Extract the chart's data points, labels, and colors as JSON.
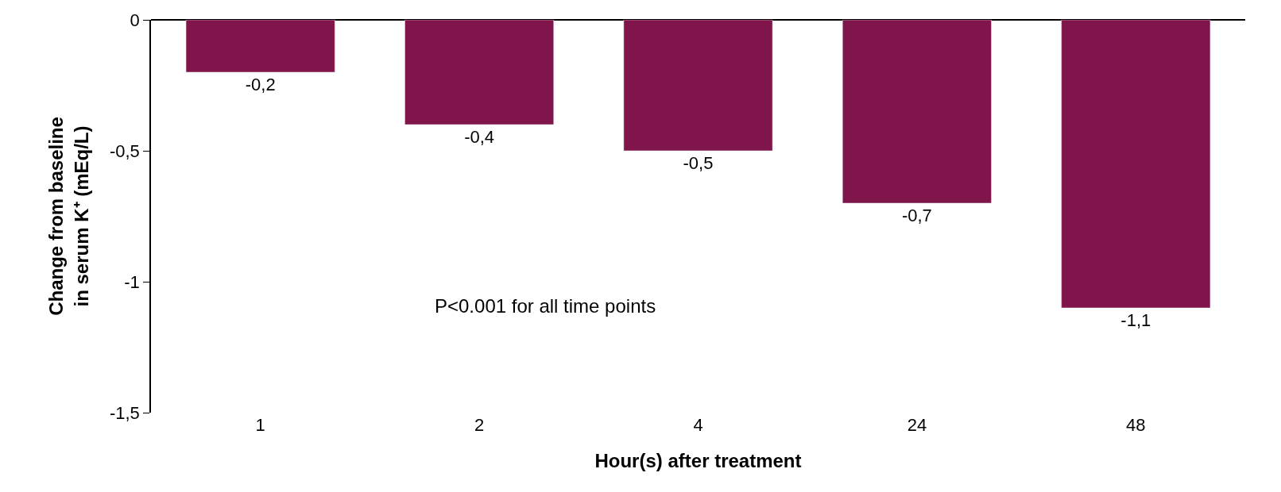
{
  "chart_data": {
    "type": "bar",
    "xlabel": "Hour(s) after treatment",
    "ylabel": "Change from baseline\nin serum K⁺ (mEq/L)",
    "categories": [
      "1",
      "2",
      "4",
      "24",
      "48"
    ],
    "values": [
      -0.2,
      -0.4,
      -0.5,
      -0.7,
      -1.1
    ],
    "value_labels": [
      "-0,2",
      "-0,4",
      "-0,5",
      "-0,7",
      "-1,1"
    ],
    "color": "#7f154a",
    "ylim": [
      -1.5,
      0
    ],
    "yticks": [
      {
        "value": -1.5,
        "label": "-1,5"
      },
      {
        "value": -1,
        "label": "-1"
      },
      {
        "value": -0.5,
        "label": "-0,5"
      },
      {
        "value": 0,
        "label": "0"
      }
    ],
    "annotations": [
      "P<0.001 for all time points"
    ]
  }
}
